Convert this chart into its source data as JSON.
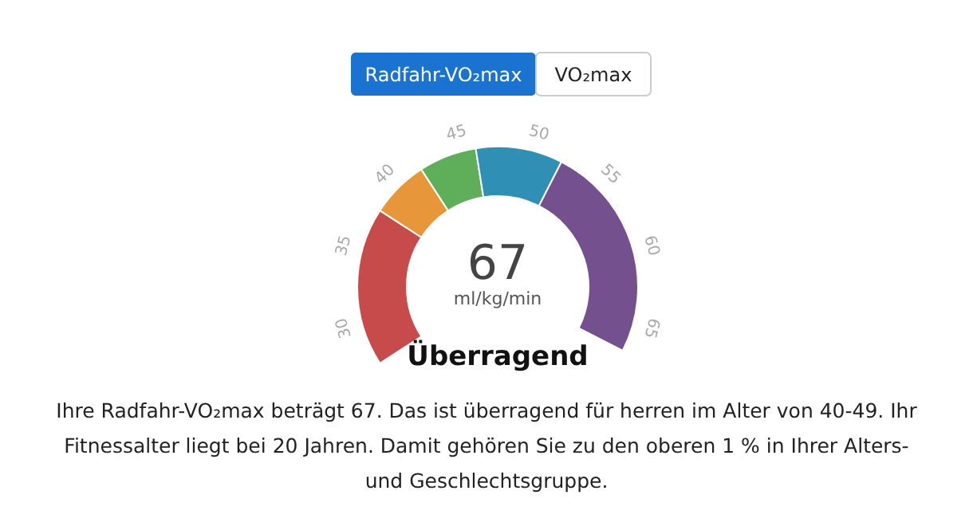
{
  "chart_data": {
    "type": "donut",
    "categories": [
      null,
      null,
      null,
      null,
      null
    ],
    "values": [
      27.5,
      10,
      10,
      15,
      37.5
    ],
    "colors": [
      "#c84b4b",
      "#e8963a",
      "#5fae5a",
      "#2f8fb5",
      "#74508f"
    ],
    "annotations": [
      "Radfahr-VO₂max",
      "VO₂max",
      "67",
      "ml/kg/min",
      "Überragend",
      "Ihre Radfahr-VO₂max beträgt 67. Das ist überragend für herren im Alter von 40-49. Ihr",
      "Fitnessalter liegt bei 20 Jahren. Damit gehören Sie zu den oberen 1 % in Ihrer Alters-",
      "und Geschlechtsgruppe.",
      "30",
      "35",
      "40",
      "45",
      "50",
      "55",
      "60",
      "65"
    ]
  }
}
